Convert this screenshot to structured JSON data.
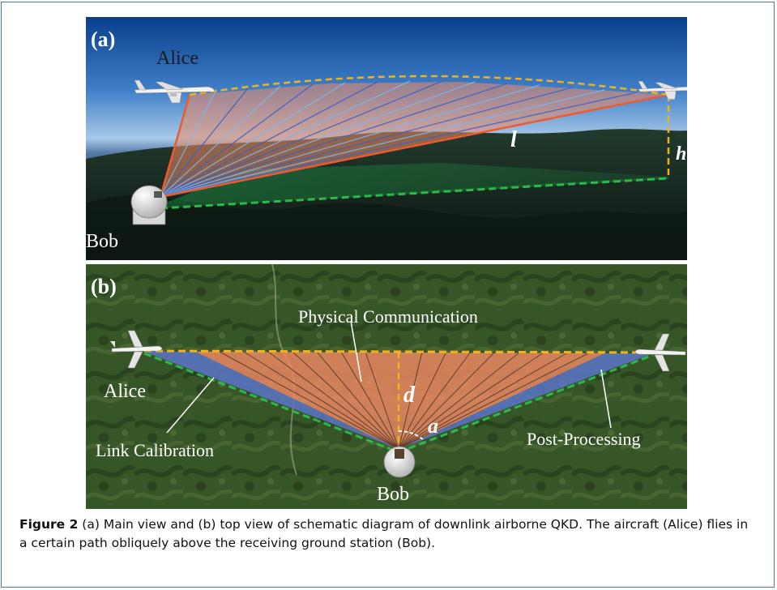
{
  "panel_a": {
    "tag": "(a)",
    "alice": "Alice",
    "bob": "Bob",
    "l": "l",
    "h": "h"
  },
  "panel_b": {
    "tag": "(b)",
    "alice": "Alice",
    "bob": "Bob",
    "physical": "Physical Communication",
    "link": "Link Calibration",
    "post": "Post-Processing",
    "d": "d",
    "a": "a"
  },
  "caption": {
    "label": "Figure 2",
    "text": " (a) Main view and (b) top view of schematic diagram of downlink airborne QKD. The aircraft (Alice) flies in a certain path obliquely above the receiving ground station (Bob)."
  },
  "colors": {
    "yellow_path": "#f2b21e",
    "green_path": "#2db84a",
    "orange_fan": "#f08a64",
    "blue_fan": "#5b74c8",
    "frame": "#4a78a8"
  }
}
